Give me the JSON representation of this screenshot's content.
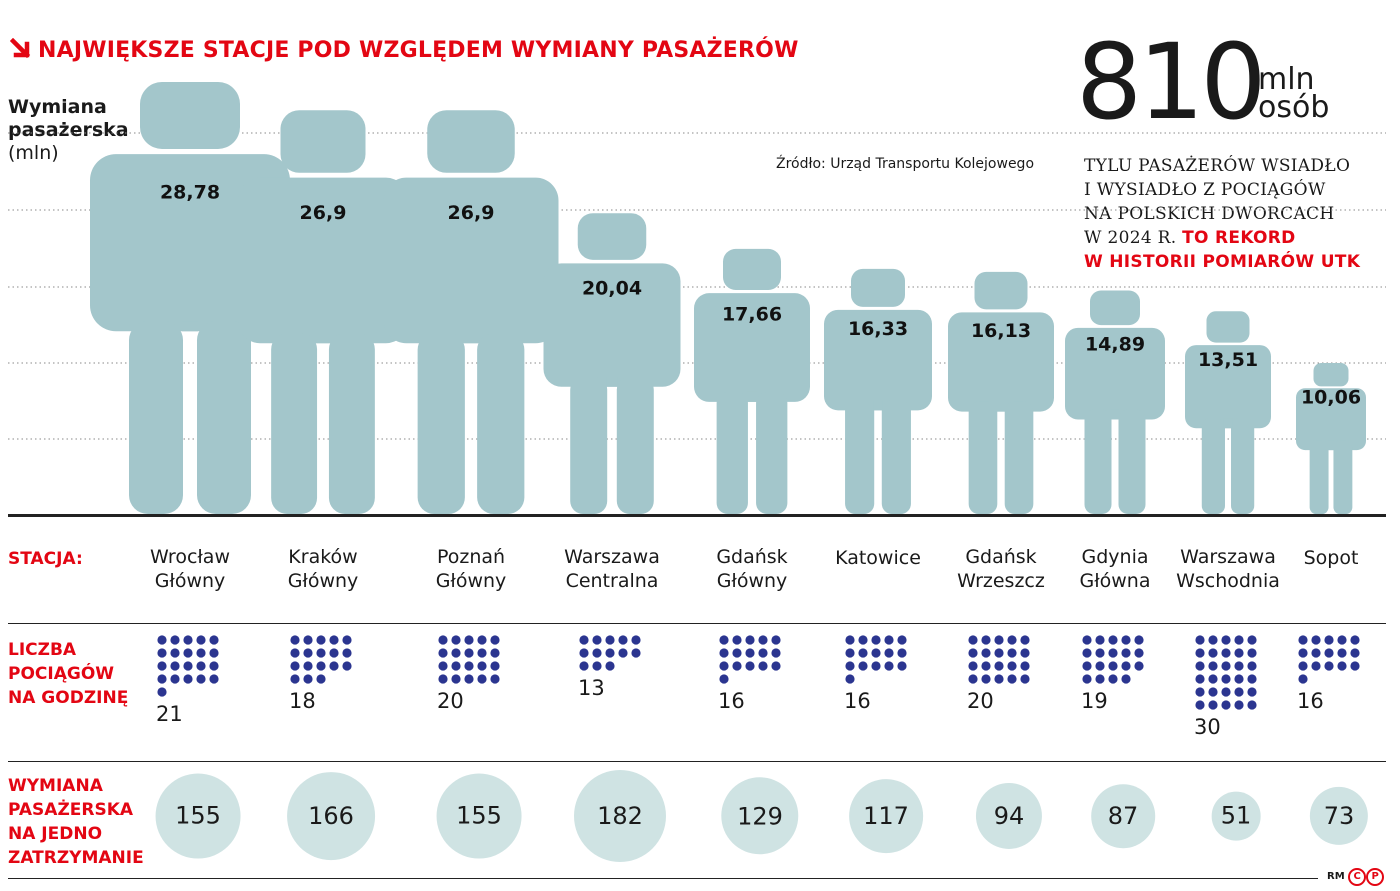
{
  "title": "NAJWIĘKSZE STACJE POD WZGLĘDEM WYMIANY PASAŻERÓW",
  "ylabel": {
    "line1": "Wymiana",
    "line2": "pasażerska",
    "unit": "(mln)"
  },
  "source": "Źródło: Urząd Transportu Kolejowego",
  "headline": {
    "number": "810",
    "unit_line1": "mln",
    "unit_line2": "osób",
    "desc_lines": [
      "TYLU PASAŻERÓW WSIADŁO",
      "I WYSIADŁO Z POCIĄGÓW",
      "NA POLSKICH DWORCACH"
    ],
    "desc_last_plain": "W 2024 R. ",
    "desc_highlight1": "TO REKORD",
    "desc_highlight2": "W HISTORII POMIARÓW UTK"
  },
  "row_labels": {
    "station": "STACJA:",
    "trains": [
      "LICZBA",
      "POCIĄGÓW",
      "NA GODZINĘ"
    ],
    "exchange": [
      "WYMIANA",
      "PASAŻERSKA",
      "NA JEDNO",
      "ZATRZYMANIE"
    ]
  },
  "colors": {
    "figure": "#a3c6cb",
    "accent": "#e30613",
    "dots": "#2b3590",
    "circle": "#cfe3e3"
  },
  "chart_data": {
    "type": "bar",
    "categories": [
      "Wrocław Główny",
      "Kraków Główny",
      "Poznań Główny",
      "Warszawa Centralna",
      "Gdańsk Główny",
      "Katowice",
      "Gdańsk Wrzeszcz",
      "Gdynia Główna",
      "Warszawa Wschodnia",
      "Sopot"
    ],
    "station_lines": [
      [
        "Wrocław",
        "Główny"
      ],
      [
        "Kraków",
        "Główny"
      ],
      [
        "Poznań",
        "Główny"
      ],
      [
        "Warszawa",
        "Centralna"
      ],
      [
        "Gdańsk",
        "Główny"
      ],
      [
        "Katowice"
      ],
      [
        "Gdańsk",
        "Wrzeszcz"
      ],
      [
        "Gdynia",
        "Główna"
      ],
      [
        "Warszawa",
        "Wschodnia"
      ],
      [
        "Sopot"
      ]
    ],
    "series": [
      {
        "values": [
          28.78,
          26.9,
          26.9,
          20.04,
          17.66,
          16.33,
          16.13,
          14.89,
          13.51,
          10.06
        ]
      },
      {
        "values": [
          21,
          18,
          20,
          13,
          16,
          16,
          20,
          19,
          30,
          16
        ]
      },
      {
        "values": [
          155,
          166,
          155,
          182,
          129,
          117,
          94,
          87,
          51,
          73
        ]
      }
    ],
    "value_labels": [
      "28,78",
      "26,9",
      "26,9",
      "20,04",
      "17,66",
      "16,33",
      "16,13",
      "14,89",
      "13,51",
      "10,06"
    ],
    "grid": true
  },
  "footer": {
    "initials": "RM"
  }
}
